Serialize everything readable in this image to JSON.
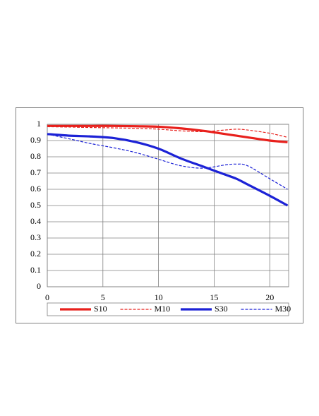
{
  "chart_data": {
    "type": "line",
    "x": [
      0,
      2,
      4,
      6,
      8,
      10,
      12,
      14,
      16,
      17,
      18,
      20,
      21.6
    ],
    "series": [
      {
        "name": "S10",
        "color": "#e8201c",
        "line_style": "solid",
        "values": [
          0.99,
          0.99,
          0.99,
          0.99,
          0.988,
          0.985,
          0.975,
          0.96,
          0.94,
          0.93,
          0.92,
          0.9,
          0.89
        ]
      },
      {
        "name": "M10",
        "color": "#e8201c",
        "line_style": "dashed",
        "values": [
          0.985,
          0.983,
          0.98,
          0.978,
          0.975,
          0.97,
          0.96,
          0.955,
          0.965,
          0.97,
          0.965,
          0.945,
          0.92
        ]
      },
      {
        "name": "S30",
        "color": "#1c22d6",
        "line_style": "solid",
        "values": [
          0.94,
          0.93,
          0.925,
          0.915,
          0.89,
          0.85,
          0.79,
          0.74,
          0.69,
          0.665,
          0.63,
          0.56,
          0.5
        ]
      },
      {
        "name": "M30",
        "color": "#1c22d6",
        "line_style": "dashed",
        "values": [
          0.94,
          0.91,
          0.88,
          0.855,
          0.825,
          0.785,
          0.745,
          0.73,
          0.75,
          0.755,
          0.745,
          0.665,
          0.6
        ]
      }
    ],
    "xlim": [
      0,
      21.7
    ],
    "ylim": [
      0,
      1
    ],
    "xticks": [
      0,
      5,
      10,
      15,
      20
    ],
    "yticks": [
      0,
      0.1,
      0.2,
      0.3,
      0.4,
      0.5,
      0.6,
      0.7,
      0.8,
      0.9,
      1
    ],
    "grid": true,
    "legend": "bottom"
  }
}
